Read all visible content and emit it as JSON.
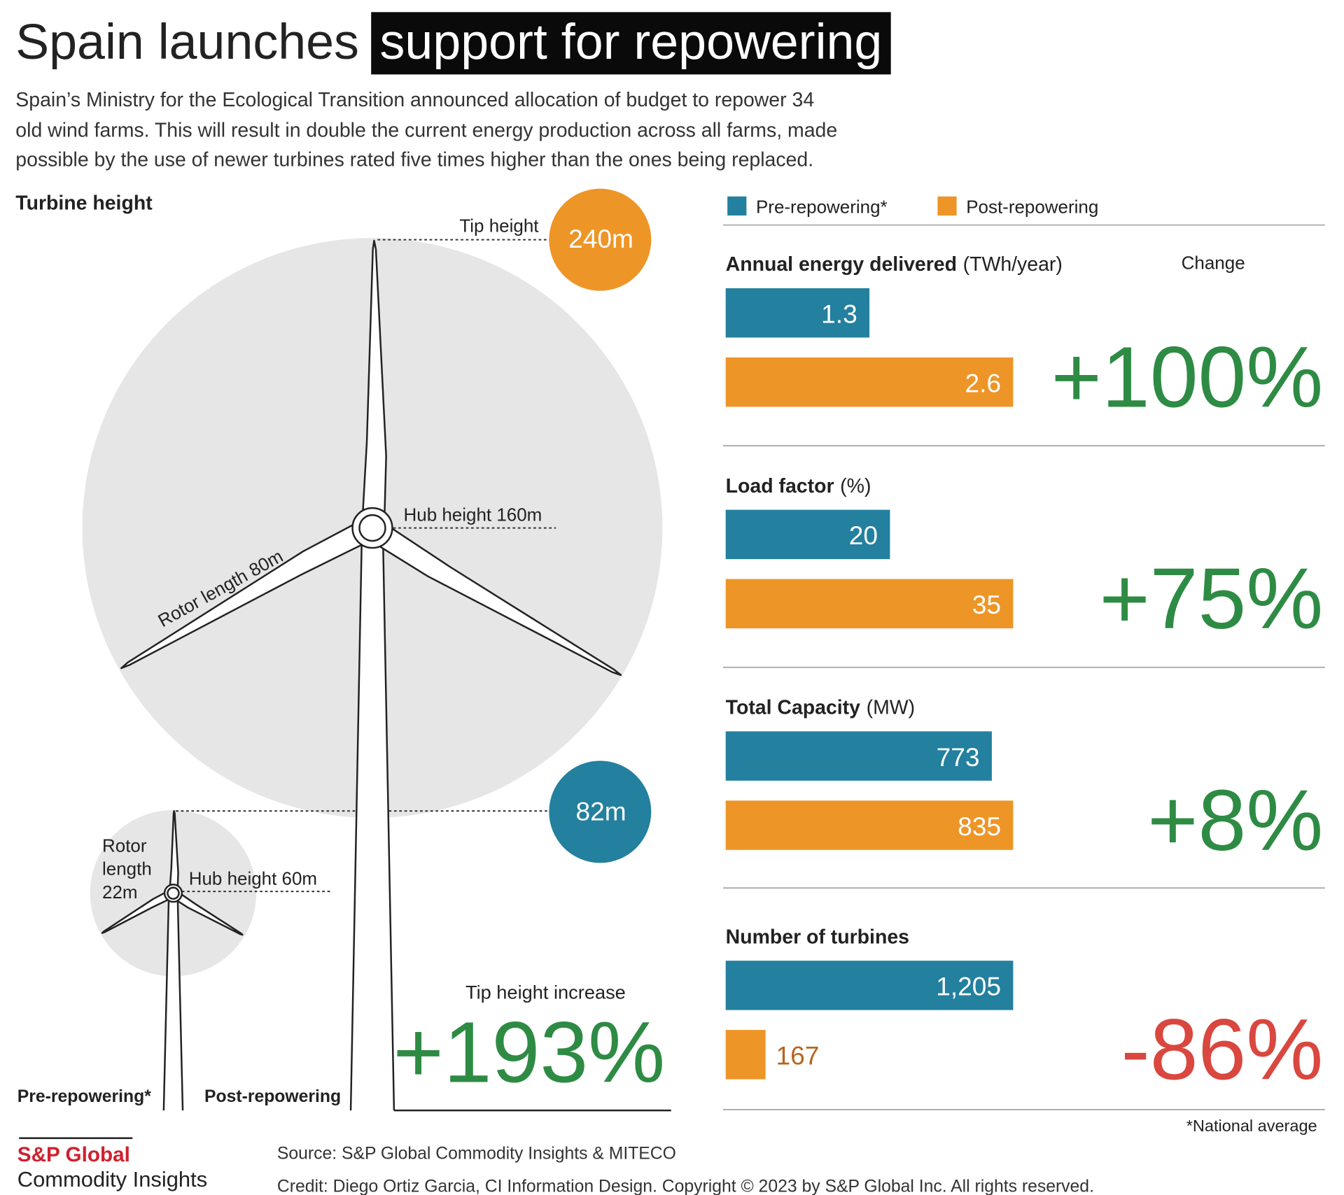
{
  "title": "Spain launches",
  "title_highlight": "support for repowering",
  "subtitle_lines": [
    "Spain’s Ministry for the Ecological Transition announced allocation of budget to repower 34",
    "old wind farms. This will result in double the current energy production across all farms, made",
    "possible by the use of newer turbines rated five times higher than the ones being replaced."
  ],
  "turbine": {
    "title": "Turbine height",
    "tip_height": "Tip height",
    "post_tip": "240m",
    "post_hub": "Hub height 160m",
    "post_rotor": "Rotor length 80m",
    "pre_tip": "82m",
    "pre_rotor_lines": [
      "Rotor",
      "length",
      "22m"
    ],
    "pre_hub": "Hub height 60m",
    "increase_label": "Tip height increase",
    "increase": "+193%",
    "pre_label": "Pre-repowering*",
    "post_label": "Post-repowering"
  },
  "chart_data": {
    "type": "bar",
    "orientation": "horizontal",
    "scale": "independent",
    "categories": [
      "Annual energy delivered",
      "Load factor",
      "Total Capacity",
      "Number of turbines"
    ],
    "category_units": [
      "(TWh/year)",
      "(%)",
      "(MW)",
      null
    ],
    "series": [
      {
        "name": "Pre-repowering*",
        "color": "#23809e",
        "values": [
          1.3,
          20,
          773,
          1205
        ],
        "value_labels": [
          "1.3",
          "20",
          "773",
          "1,205"
        ]
      },
      {
        "name": "Post-repowering",
        "color": "#ee9527",
        "values": [
          2.6,
          35,
          835,
          167
        ],
        "value_labels": [
          "2.6",
          "35",
          "835",
          "167"
        ]
      }
    ],
    "change_header": "Change",
    "change_labels": [
      "+100%",
      "+75%",
      "+8%",
      "-86%"
    ],
    "change_colors": [
      "#2e8b44",
      "#2e8b44",
      "#2e8b44",
      "#d9473f"
    ]
  },
  "footnote": "*National average",
  "logo": {
    "brand": "S&P Global",
    "sub": "Commodity Insights"
  },
  "source": "Source: S&P Global Commodity Insights & MITECO",
  "credit": "Credit: Diego Ortiz Garcia, CI Information Design.  Copyright © 2023 by S&P Global Inc. All rights reserved."
}
